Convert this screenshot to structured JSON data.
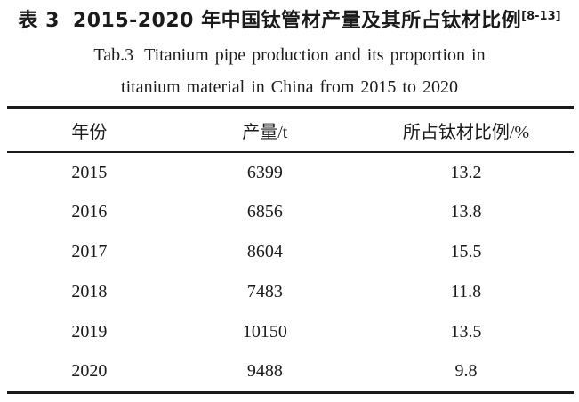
{
  "page": {
    "background": "#ffffff",
    "text_color": "#1b1b1b",
    "rule_color": "#1b1b1b"
  },
  "caption": {
    "zh_label": "表 3",
    "zh_title": "2015-2020 年中国钛管材产量及其所占钛材比例",
    "zh_superscript": "[8-13]",
    "en_label": "Tab.3",
    "en_title_line1": "Titanium pipe production and its proportion in",
    "en_title_line2": "titanium material in China from 2015 to 2020"
  },
  "table": {
    "headers": [
      "年份",
      "产量/t",
      "所占钛材比例/%"
    ],
    "rows": [
      [
        "2015",
        "6399",
        "13.2"
      ],
      [
        "2016",
        "6856",
        "13.8"
      ],
      [
        "2017",
        "8604",
        "15.5"
      ],
      [
        "2018",
        "7483",
        "11.8"
      ],
      [
        "2019",
        "10150",
        "13.5"
      ],
      [
        "2020",
        "9488",
        "9.8"
      ]
    ]
  },
  "chart_data": {
    "type": "table",
    "title": "表 3 2015-2020 年中国钛管材产量及其所占钛材比例 [8-13] / Tab.3 Titanium pipe production and its proportion in titanium material in China from 2015 to 2020",
    "columns": [
      "年份",
      "产量/t",
      "所占钛材比例/%"
    ],
    "categories": [
      "2015",
      "2016",
      "2017",
      "2018",
      "2019",
      "2020"
    ],
    "series": [
      {
        "name": "产量/t",
        "values": [
          6399,
          6856,
          8604,
          7483,
          10150,
          9488
        ]
      },
      {
        "name": "所占钛材比例/%",
        "values": [
          13.2,
          13.8,
          15.5,
          11.8,
          13.5,
          9.8
        ]
      }
    ]
  }
}
